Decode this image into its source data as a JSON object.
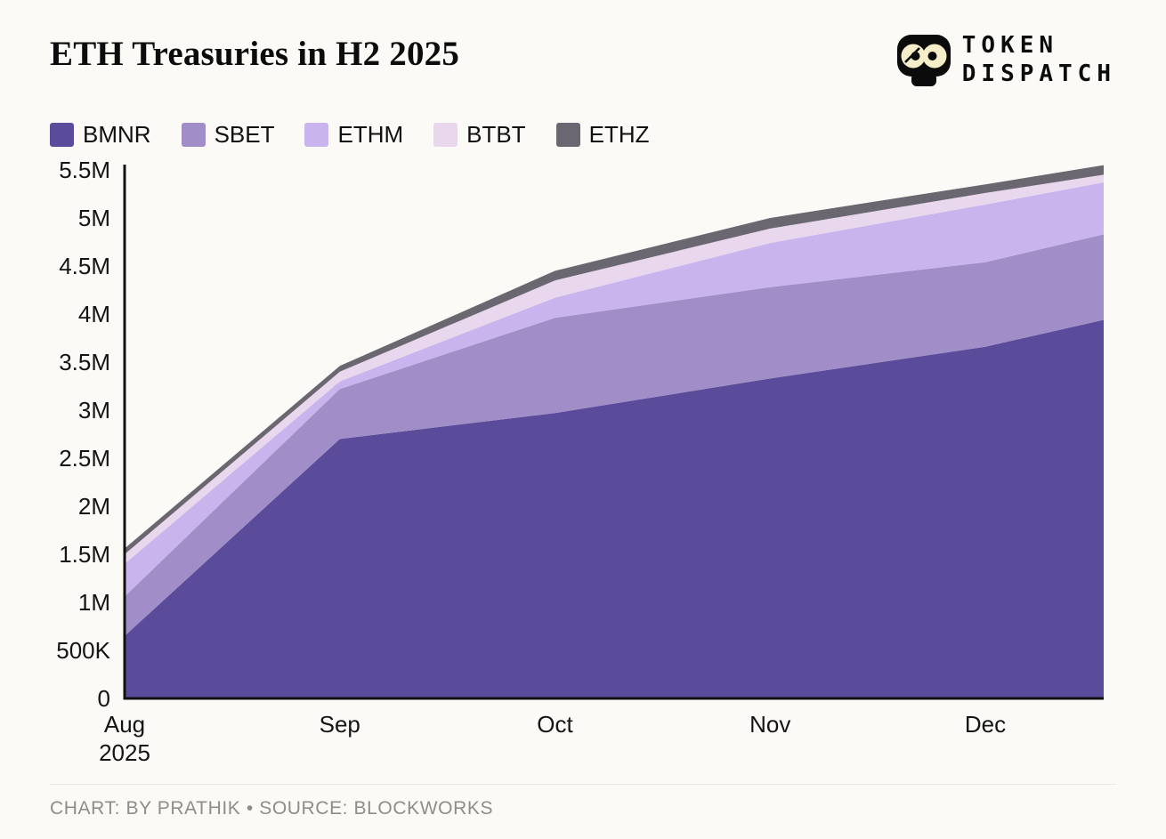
{
  "header": {
    "title": "ETH Treasuries in H2 2025",
    "logo_line1": "TOKEN",
    "logo_line2": "DISPATCH"
  },
  "footer": {
    "credit": "CHART: BY PRATHIK • SOURCE: BLOCKWORKS"
  },
  "chart_data": {
    "type": "area",
    "stacked": true,
    "title": "ETH Treasuries in H2 2025",
    "legend_position": "top-left",
    "grid": false,
    "x_values": [
      0,
      1,
      2,
      3,
      4,
      4.55
    ],
    "x_max": 4.55,
    "x_ticks": [
      {
        "pos": 0,
        "label": "Aug",
        "sub": "2025"
      },
      {
        "pos": 1,
        "label": "Sep"
      },
      {
        "pos": 2,
        "label": "Oct"
      },
      {
        "pos": 3,
        "label": "Nov"
      },
      {
        "pos": 4,
        "label": "Dec"
      }
    ],
    "ylim": [
      0,
      5.5
    ],
    "ytick_step": 0.5,
    "ytick_labels": [
      "0",
      "500K",
      "1M",
      "1.5M",
      "2M",
      "2.5M",
      "3M",
      "3.5M",
      "4M",
      "4.5M",
      "5M",
      "5.5M"
    ],
    "series": [
      {
        "name": "BMNR",
        "color": "#5b4b9b",
        "values": [
          0.65,
          2.7,
          2.97,
          3.33,
          3.66,
          3.94
        ]
      },
      {
        "name": "SBET",
        "color": "#a18dc8",
        "values": [
          0.41,
          0.52,
          0.99,
          0.95,
          0.88,
          0.89
        ]
      },
      {
        "name": "ETHM",
        "color": "#c9b4ee",
        "values": [
          0.34,
          0.08,
          0.21,
          0.46,
          0.6,
          0.54
        ]
      },
      {
        "name": "BTBT",
        "color": "#e9d7ee",
        "values": [
          0.1,
          0.1,
          0.18,
          0.15,
          0.12,
          0.08
        ]
      },
      {
        "name": "ETHZ",
        "color": "#6b6770",
        "values": [
          0.06,
          0.06,
          0.1,
          0.11,
          0.09,
          0.1
        ]
      }
    ]
  }
}
